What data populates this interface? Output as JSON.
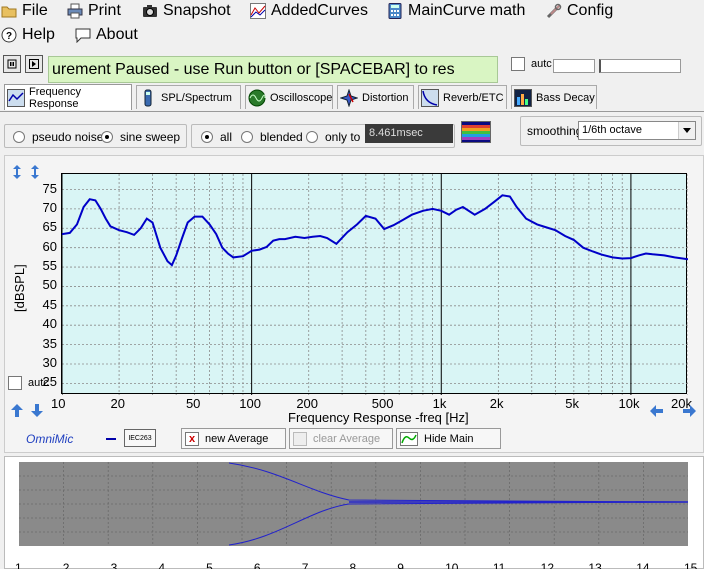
{
  "menu": {
    "file": "File",
    "print": "Print",
    "snapshot": "Snapshot",
    "added_curves": "AddedCurves",
    "main_curve_math": "MainCurve math",
    "config": "Config",
    "help": "Help",
    "about": "About"
  },
  "status": {
    "message": "urement Paused - use Run button or [SPACEBAR] to res",
    "auto_label_top": "autc"
  },
  "tabs": [
    {
      "label": "Frequency Response",
      "active": true
    },
    {
      "label": "SPL/Spectrum"
    },
    {
      "label": "Oscilloscope"
    },
    {
      "label": "Distortion"
    },
    {
      "label": "Reverb/ETC"
    },
    {
      "label": "Bass Decay"
    }
  ],
  "controls": {
    "pseudo_noise": "pseudo noise",
    "sine_sweep": "sine sweep",
    "all": "all",
    "blended": "blended",
    "only_to": "only to",
    "time_value": "8.461msec",
    "smoothing_label": "smoothing",
    "smoothing_value": "1/6th octave"
  },
  "plot": {
    "ylabel": "[dBSPL]",
    "xlabel": "Frequency Response -freq [Hz]",
    "auto_label": "autc",
    "y_ticks": [
      "75",
      "70",
      "65",
      "60",
      "55",
      "50",
      "45",
      "40",
      "35",
      "30",
      "25"
    ],
    "x_ticks": [
      "10",
      "20",
      "50",
      "100",
      "200",
      "500",
      "1k",
      "2k",
      "5k",
      "10k",
      "20k"
    ],
    "curve_color": "#0000c8",
    "background_color": "#d9f5f5"
  },
  "chart_data": {
    "type": "line",
    "title": "",
    "xlabel": "Frequency Response -freq [Hz]",
    "ylabel": "[dBSPL]",
    "x_scale": "log",
    "xlim": [
      10,
      20000
    ],
    "ylim": [
      22,
      79
    ],
    "grid": true,
    "series": [
      {
        "x": [
          10,
          11,
          12,
          13,
          14,
          15,
          16,
          17,
          18,
          20,
          22,
          24,
          26,
          28,
          30,
          33,
          36,
          38,
          40,
          43,
          46,
          50,
          55,
          60,
          65,
          70,
          75,
          80,
          90,
          100,
          110,
          120,
          130,
          140,
          150,
          170,
          190,
          210,
          230,
          250,
          280,
          320,
          360,
          400,
          450,
          500,
          560,
          630,
          700,
          800,
          900,
          1000,
          1100,
          1200,
          1300,
          1500,
          1700,
          1900,
          2100,
          2300,
          2500,
          2800,
          3200,
          3600,
          4000,
          4500,
          5000,
          5600,
          6300,
          7000,
          8000,
          9000,
          10000,
          11000,
          12000,
          13000,
          15000,
          17000,
          20000
        ],
        "values": [
          63.5,
          63.8,
          66,
          70.5,
          72.5,
          72.2,
          70,
          67.5,
          65.5,
          64.5,
          64,
          63.3,
          65,
          67.5,
          66.5,
          60,
          56.5,
          55.5,
          58,
          62.5,
          66.5,
          68,
          68,
          66,
          63.5,
          60,
          58.5,
          57.5,
          57.8,
          59.2,
          59.5,
          60.2,
          61.8,
          62.2,
          62.2,
          62.8,
          62.5,
          62.8,
          63,
          62.5,
          61,
          64,
          66,
          68.2,
          67.5,
          64.8,
          65.8,
          67.2,
          68.5,
          69.5,
          70,
          69.5,
          68.5,
          69.8,
          70.5,
          68.5,
          70,
          71.8,
          73.5,
          73.2,
          70.5,
          67.5,
          66,
          65.2,
          64.5,
          63,
          62,
          60,
          59,
          58.2,
          57.5,
          57.2,
          57.3,
          58,
          58.5,
          58.3,
          58,
          57.5,
          57
        ]
      }
    ]
  },
  "bottom_toolbar": {
    "brand": "OmniMic",
    "mic_label": "IEC263",
    "new_average": "new Average",
    "clear_average": "clear Average",
    "hide_main": "Hide Main"
  },
  "lower_ticks": [
    "1",
    "2",
    "3",
    "4",
    "5",
    "6",
    "7",
    "8",
    "9",
    "10",
    "11",
    "12",
    "13",
    "14",
    "15"
  ]
}
